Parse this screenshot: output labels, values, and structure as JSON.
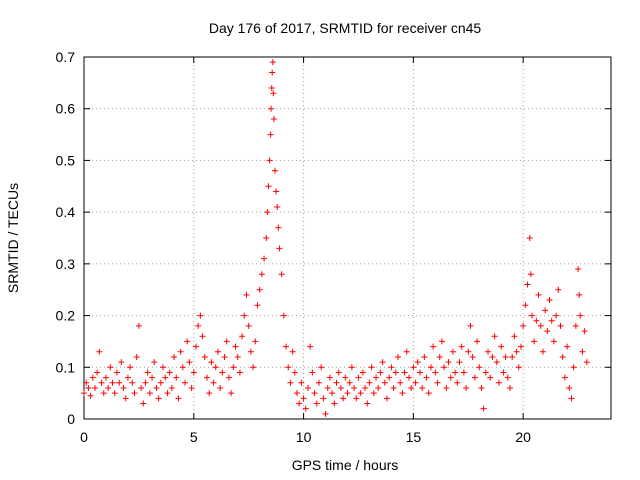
{
  "chart_data": {
    "type": "scatter",
    "title": "Day 176 of 2017, SRMTID for receiver cn45",
    "xlabel": "GPS time / hours",
    "ylabel": "SRMTID / TECUs",
    "xlim": [
      0,
      24
    ],
    "ylim": [
      0,
      0.7
    ],
    "xticks": [
      0,
      5,
      10,
      15,
      20
    ],
    "xtick_labels": [
      "0",
      "5",
      "10",
      "15",
      "20"
    ],
    "yticks": [
      0,
      0.1,
      0.2,
      0.3,
      0.4,
      0.5,
      0.6,
      0.7
    ],
    "ytick_labels": [
      "0",
      "0.1",
      "0.2",
      "0.3",
      "0.4",
      "0.5",
      "0.6",
      "0.7"
    ],
    "grid": true,
    "marker": "+",
    "color": "#ff0000",
    "series": [
      {
        "name": "SRMTID",
        "points": [
          [
            0.0,
            0.05
          ],
          [
            0.1,
            0.07
          ],
          [
            0.2,
            0.06
          ],
          [
            0.3,
            0.045
          ],
          [
            0.4,
            0.08
          ],
          [
            0.5,
            0.06
          ],
          [
            0.6,
            0.09
          ],
          [
            0.7,
            0.13
          ],
          [
            0.8,
            0.07
          ],
          [
            0.9,
            0.05
          ],
          [
            1.0,
            0.08
          ],
          [
            1.1,
            0.06
          ],
          [
            1.2,
            0.1
          ],
          [
            1.3,
            0.07
          ],
          [
            1.4,
            0.05
          ],
          [
            1.5,
            0.09
          ],
          [
            1.6,
            0.07
          ],
          [
            1.7,
            0.11
          ],
          [
            1.8,
            0.06
          ],
          [
            1.9,
            0.04
          ],
          [
            2.0,
            0.08
          ],
          [
            2.1,
            0.1
          ],
          [
            2.2,
            0.07
          ],
          [
            2.3,
            0.05
          ],
          [
            2.4,
            0.12
          ],
          [
            2.5,
            0.18
          ],
          [
            2.6,
            0.06
          ],
          [
            2.7,
            0.03
          ],
          [
            2.8,
            0.07
          ],
          [
            2.9,
            0.09
          ],
          [
            3.0,
            0.05
          ],
          [
            3.1,
            0.08
          ],
          [
            3.2,
            0.11
          ],
          [
            3.3,
            0.06
          ],
          [
            3.4,
            0.04
          ],
          [
            3.5,
            0.07
          ],
          [
            3.6,
            0.1
          ],
          [
            3.7,
            0.08
          ],
          [
            3.8,
            0.05
          ],
          [
            3.9,
            0.09
          ],
          [
            4.0,
            0.06
          ],
          [
            4.1,
            0.12
          ],
          [
            4.2,
            0.08
          ],
          [
            4.3,
            0.04
          ],
          [
            4.4,
            0.13
          ],
          [
            4.5,
            0.1
          ],
          [
            4.6,
            0.07
          ],
          [
            4.7,
            0.15
          ],
          [
            4.8,
            0.11
          ],
          [
            4.9,
            0.06
          ],
          [
            5.0,
            0.09
          ],
          [
            5.1,
            0.14
          ],
          [
            5.2,
            0.18
          ],
          [
            5.3,
            0.2
          ],
          [
            5.4,
            0.16
          ],
          [
            5.5,
            0.12
          ],
          [
            5.6,
            0.08
          ],
          [
            5.7,
            0.05
          ],
          [
            5.8,
            0.11
          ],
          [
            5.9,
            0.07
          ],
          [
            6.0,
            0.1
          ],
          [
            6.1,
            0.13
          ],
          [
            6.2,
            0.06
          ],
          [
            6.3,
            0.09
          ],
          [
            6.4,
            0.12
          ],
          [
            6.5,
            0.15
          ],
          [
            6.6,
            0.08
          ],
          [
            6.7,
            0.05
          ],
          [
            6.8,
            0.1
          ],
          [
            6.9,
            0.14
          ],
          [
            7.0,
            0.12
          ],
          [
            7.1,
            0.09
          ],
          [
            7.2,
            0.16
          ],
          [
            7.3,
            0.2
          ],
          [
            7.4,
            0.24
          ],
          [
            7.5,
            0.18
          ],
          [
            7.6,
            0.13
          ],
          [
            7.7,
            0.1
          ],
          [
            7.8,
            0.15
          ],
          [
            7.9,
            0.22
          ],
          [
            8.0,
            0.25
          ],
          [
            8.1,
            0.28
          ],
          [
            8.2,
            0.31
          ],
          [
            8.3,
            0.35
          ],
          [
            8.35,
            0.4
          ],
          [
            8.4,
            0.45
          ],
          [
            8.45,
            0.5
          ],
          [
            8.5,
            0.55
          ],
          [
            8.52,
            0.6
          ],
          [
            8.55,
            0.64
          ],
          [
            8.57,
            0.67
          ],
          [
            8.6,
            0.69
          ],
          [
            8.62,
            0.63
          ],
          [
            8.65,
            0.58
          ],
          [
            8.7,
            0.48
          ],
          [
            8.75,
            0.44
          ],
          [
            8.8,
            0.41
          ],
          [
            8.85,
            0.37
          ],
          [
            8.9,
            0.33
          ],
          [
            9.0,
            0.28
          ],
          [
            9.1,
            0.2
          ],
          [
            9.2,
            0.14
          ],
          [
            9.3,
            0.1
          ],
          [
            9.4,
            0.07
          ],
          [
            9.5,
            0.13
          ],
          [
            9.6,
            0.09
          ],
          [
            9.7,
            0.05
          ],
          [
            9.8,
            0.03
          ],
          [
            9.9,
            0.07
          ],
          [
            10.0,
            0.04
          ],
          [
            10.1,
            0.02
          ],
          [
            10.2,
            0.06
          ],
          [
            10.3,
            0.14
          ],
          [
            10.4,
            0.09
          ],
          [
            10.5,
            0.05
          ],
          [
            10.6,
            0.03
          ],
          [
            10.7,
            0.07
          ],
          [
            10.8,
            0.1
          ],
          [
            10.9,
            0.04
          ],
          [
            11.0,
            0.01
          ],
          [
            11.1,
            0.06
          ],
          [
            11.2,
            0.08
          ],
          [
            11.3,
            0.05
          ],
          [
            11.4,
            0.03
          ],
          [
            11.5,
            0.07
          ],
          [
            11.6,
            0.09
          ],
          [
            11.7,
            0.06
          ],
          [
            11.8,
            0.04
          ],
          [
            11.9,
            0.08
          ],
          [
            12.0,
            0.05
          ],
          [
            12.1,
            0.07
          ],
          [
            12.2,
            0.1
          ],
          [
            12.3,
            0.06
          ],
          [
            12.4,
            0.04
          ],
          [
            12.5,
            0.08
          ],
          [
            12.6,
            0.05
          ],
          [
            12.7,
            0.09
          ],
          [
            12.8,
            0.06
          ],
          [
            12.9,
            0.03
          ],
          [
            13.0,
            0.07
          ],
          [
            13.1,
            0.1
          ],
          [
            13.2,
            0.05
          ],
          [
            13.3,
            0.08
          ],
          [
            13.4,
            0.06
          ],
          [
            13.5,
            0.09
          ],
          [
            13.6,
            0.11
          ],
          [
            13.7,
            0.07
          ],
          [
            13.8,
            0.04
          ],
          [
            13.9,
            0.08
          ],
          [
            14.0,
            0.1
          ],
          [
            14.1,
            0.06
          ],
          [
            14.2,
            0.09
          ],
          [
            14.3,
            0.12
          ],
          [
            14.4,
            0.07
          ],
          [
            14.5,
            0.05
          ],
          [
            14.6,
            0.09
          ],
          [
            14.7,
            0.13
          ],
          [
            14.8,
            0.08
          ],
          [
            14.9,
            0.06
          ],
          [
            15.0,
            0.1
          ],
          [
            15.1,
            0.07
          ],
          [
            15.2,
            0.11
          ],
          [
            15.3,
            0.09
          ],
          [
            15.4,
            0.06
          ],
          [
            15.5,
            0.12
          ],
          [
            15.6,
            0.08
          ],
          [
            15.7,
            0.05
          ],
          [
            15.8,
            0.1
          ],
          [
            15.9,
            0.14
          ],
          [
            16.0,
            0.09
          ],
          [
            16.1,
            0.07
          ],
          [
            16.2,
            0.12
          ],
          [
            16.3,
            0.15
          ],
          [
            16.4,
            0.1
          ],
          [
            16.5,
            0.06
          ],
          [
            16.6,
            0.11
          ],
          [
            16.7,
            0.08
          ],
          [
            16.8,
            0.13
          ],
          [
            16.9,
            0.09
          ],
          [
            17.0,
            0.07
          ],
          [
            17.1,
            0.11
          ],
          [
            17.2,
            0.14
          ],
          [
            17.3,
            0.09
          ],
          [
            17.4,
            0.06
          ],
          [
            17.5,
            0.13
          ],
          [
            17.6,
            0.18
          ],
          [
            17.7,
            0.12
          ],
          [
            17.8,
            0.08
          ],
          [
            17.9,
            0.15
          ],
          [
            18.0,
            0.1
          ],
          [
            18.1,
            0.06
          ],
          [
            18.2,
            0.02
          ],
          [
            18.3,
            0.09
          ],
          [
            18.4,
            0.13
          ],
          [
            18.5,
            0.08
          ],
          [
            18.6,
            0.12
          ],
          [
            18.7,
            0.16
          ],
          [
            18.8,
            0.11
          ],
          [
            18.9,
            0.07
          ],
          [
            19.0,
            0.14
          ],
          [
            19.1,
            0.09
          ],
          [
            19.2,
            0.12
          ],
          [
            19.3,
            0.08
          ],
          [
            19.4,
            0.06
          ],
          [
            19.5,
            0.12
          ],
          [
            19.6,
            0.16
          ],
          [
            19.7,
            0.13
          ],
          [
            19.8,
            0.1
          ],
          [
            19.9,
            0.14
          ],
          [
            20.0,
            0.18
          ],
          [
            20.1,
            0.22
          ],
          [
            20.2,
            0.26
          ],
          [
            20.3,
            0.35
          ],
          [
            20.35,
            0.28
          ],
          [
            20.4,
            0.2
          ],
          [
            20.5,
            0.15
          ],
          [
            20.6,
            0.19
          ],
          [
            20.7,
            0.24
          ],
          [
            20.8,
            0.18
          ],
          [
            20.9,
            0.13
          ],
          [
            21.0,
            0.21
          ],
          [
            21.1,
            0.17
          ],
          [
            21.2,
            0.23
          ],
          [
            21.3,
            0.19
          ],
          [
            21.4,
            0.15
          ],
          [
            21.5,
            0.2
          ],
          [
            21.6,
            0.25
          ],
          [
            21.7,
            0.18
          ],
          [
            21.8,
            0.12
          ],
          [
            21.9,
            0.08
          ],
          [
            22.0,
            0.14
          ],
          [
            22.1,
            0.06
          ],
          [
            22.2,
            0.04
          ],
          [
            22.3,
            0.1
          ],
          [
            22.4,
            0.18
          ],
          [
            22.5,
            0.29
          ],
          [
            22.55,
            0.24
          ],
          [
            22.6,
            0.2
          ],
          [
            22.7,
            0.13
          ],
          [
            22.8,
            0.17
          ],
          [
            22.9,
            0.11
          ]
        ]
      }
    ]
  }
}
